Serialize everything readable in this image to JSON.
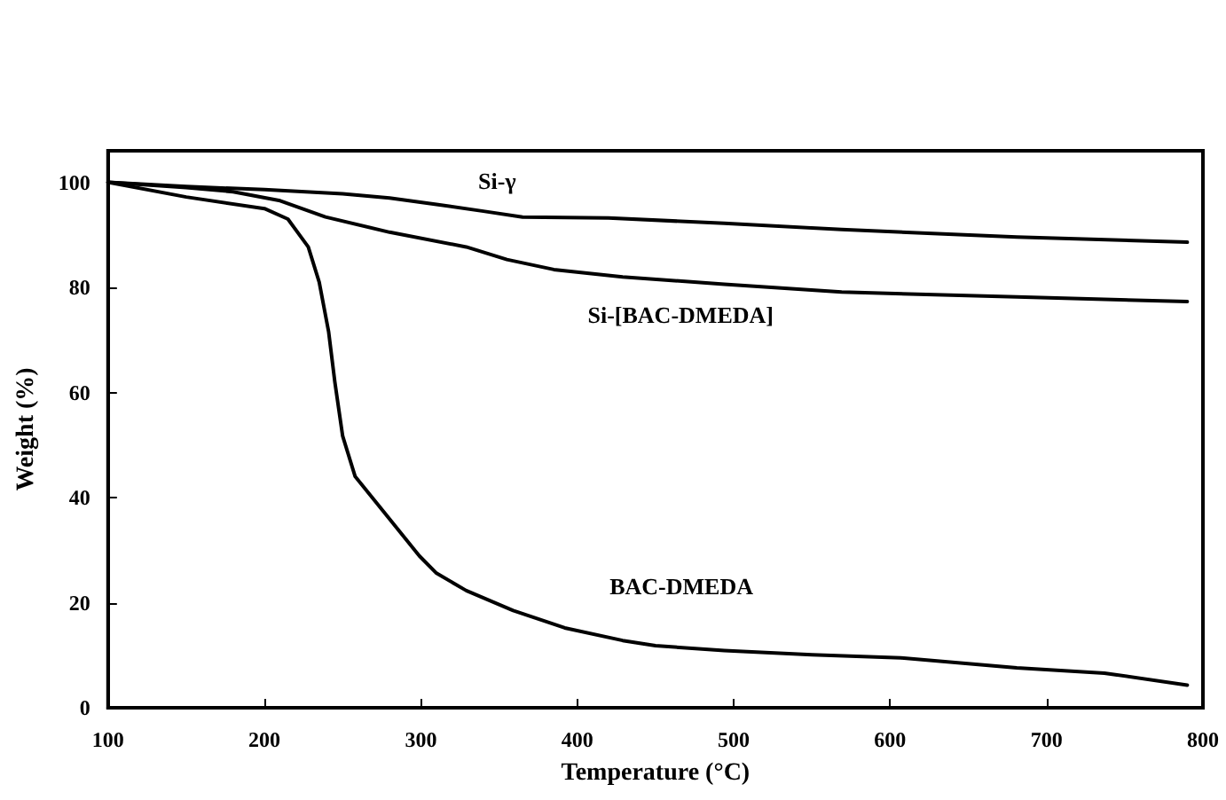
{
  "chart_data": {
    "type": "line",
    "xlabel": "Temperature (°C)",
    "ylabel": "Weight (%)",
    "xlim": [
      100,
      800
    ],
    "ylim": [
      0,
      106
    ],
    "xticks": [
      100,
      200,
      300,
      400,
      500,
      600,
      700,
      800
    ],
    "yticks": [
      0,
      20,
      40,
      60,
      80,
      100
    ],
    "grid": false,
    "marker": "none",
    "line_style": "solid",
    "series": [
      {
        "name": "Si-γ",
        "color": "#000000",
        "x": [
          100,
          150,
          200,
          250,
          280,
          310,
          340,
          365,
          420,
          494,
          569,
          681,
          790
        ],
        "values": [
          100,
          99.2,
          98.6,
          97.8,
          97,
          95.8,
          94.5,
          93.4,
          93.2,
          92.2,
          91,
          89.6,
          88.6
        ]
      },
      {
        "name": "Si-[BAC-DMEDA]",
        "color": "#000000",
        "x": [
          100,
          150,
          180,
          210,
          239,
          280,
          329,
          355,
          385,
          429,
          494,
          569,
          681,
          790
        ],
        "values": [
          100,
          99,
          98.2,
          96.5,
          93.4,
          90.5,
          87.7,
          85.3,
          83.4,
          82,
          80.6,
          79.1,
          78.2,
          77.3
        ]
      },
      {
        "name": "BAC-DMEDA",
        "color": "#000000",
        "x": [
          100,
          150,
          200,
          215,
          228,
          235,
          241,
          245,
          250,
          258,
          276,
          299,
          310,
          329,
          359,
          392,
          429,
          450,
          494,
          550,
          607,
          681,
          737,
          790
        ],
        "values": [
          100,
          97.2,
          95,
          93,
          87.7,
          81,
          71.6,
          62,
          51.7,
          44,
          37.4,
          28.9,
          25.6,
          22.3,
          18.5,
          15.2,
          12.8,
          11.8,
          10.9,
          10.1,
          9.5,
          7.6,
          6.6,
          4.3
        ]
      }
    ]
  }
}
